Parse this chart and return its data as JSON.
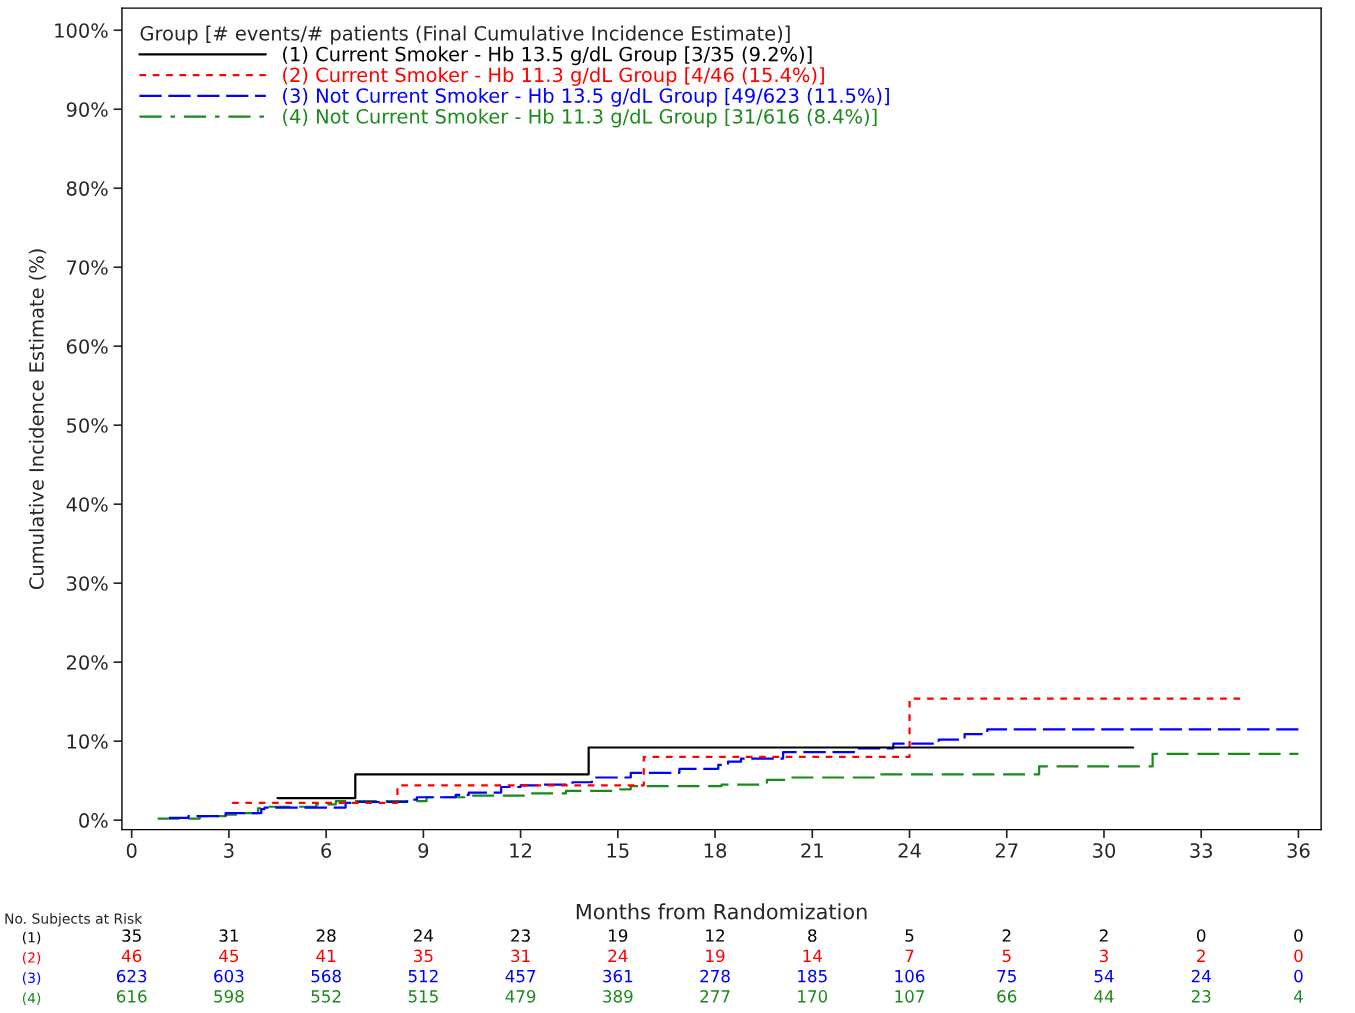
{
  "chart_data": [
    {
      "type": "step",
      "xlabel": "Months from Randomization",
      "ylabel": "Cumulative Incidence Estimate (%)",
      "legend_title": "Group [# events/# patients (Final Cumulative Incidence Estimate)]",
      "legend": "top left",
      "grid": false,
      "marker": "none",
      "xlim": [
        -0.3,
        36.7
      ],
      "xticks": [
        0,
        3,
        6,
        9,
        12,
        15,
        18,
        21,
        24,
        27,
        30,
        33,
        36
      ],
      "ylim": [
        -1.2,
        102.8
      ],
      "yticks": [
        {
          "value": 0,
          "label": "0%"
        },
        {
          "value": 10,
          "label": "10%"
        },
        {
          "value": 20,
          "label": "20%"
        },
        {
          "value": 30,
          "label": "30%"
        },
        {
          "value": 40,
          "label": "40%"
        },
        {
          "value": 50,
          "label": "50%"
        },
        {
          "value": 60,
          "label": "60%"
        },
        {
          "value": 70,
          "label": "70%"
        },
        {
          "value": 80,
          "label": "80%"
        },
        {
          "value": 90,
          "label": "90%"
        },
        {
          "value": 100,
          "label": "100%"
        }
      ],
      "series": [
        {
          "name": "(1) Current Smoker - Hb 13.5 g/dL Group [3/35 (9.2%)]",
          "color": "#000000",
          "line_style": "solid",
          "x": [
            4.5,
            6.9,
            14.1,
            30.9
          ],
          "values": [
            2.8,
            5.8,
            9.2,
            9.2
          ]
        },
        {
          "name": "(2) Current Smoker - Hb 11.3 g/dL Group [4/46 (15.4%)]",
          "color": "#ff0000",
          "line_style": "dotted",
          "x": [
            3.1,
            8.2,
            15.8,
            24.0,
            34.2
          ],
          "values": [
            2.2,
            4.4,
            8.0,
            15.4,
            15.4
          ]
        },
        {
          "name": "(3) Not Current Smoker - Hb 13.5 g/dL Group [49/623 (11.5%)]",
          "color": "#0000ff",
          "line_style": "dashed",
          "x": [
            1.15,
            1.75,
            2.9,
            3.6,
            4.0,
            4.1,
            6.6,
            6.9,
            8.5,
            8.8,
            10.0,
            10.4,
            11.4,
            12.0,
            12.6,
            13.6,
            14.2,
            15.4,
            16.9,
            18.1,
            18.4,
            18.8,
            20.1,
            22.4,
            23.5,
            24.9,
            25.7,
            26.4,
            36.0
          ],
          "values": [
            0.3,
            0.5,
            0.9,
            0.9,
            1.4,
            1.6,
            2.2,
            2.3,
            2.6,
            2.9,
            3.2,
            3.5,
            4.2,
            4.4,
            4.5,
            4.8,
            5.4,
            6.0,
            6.5,
            7.0,
            7.4,
            7.8,
            8.6,
            9.1,
            9.7,
            10.2,
            10.9,
            11.5,
            11.5
          ]
        },
        {
          "name": "(4) Not Current Smoker - Hb 11.3 g/dL Group [31/616 (8.4%)]",
          "color": "#1a8a1a",
          "line_style": "dashdot",
          "x": [
            0.8,
            2.1,
            2.9,
            3.3,
            3.9,
            4.1,
            5.7,
            6.3,
            9.1,
            10.3,
            12.1,
            13.4,
            14.9,
            15.4,
            18.2,
            19.6,
            20.3,
            23.0,
            28.0,
            31.5,
            36.0
          ],
          "values": [
            0.2,
            0.5,
            0.7,
            0.9,
            1.5,
            1.7,
            2.0,
            2.4,
            2.9,
            3.1,
            3.4,
            3.7,
            3.9,
            4.3,
            4.5,
            5.1,
            5.4,
            5.8,
            6.8,
            8.4,
            8.4
          ]
        }
      ]
    },
    {
      "type": "heatmap",
      "title": "No. Subjects at Risk",
      "data_labels": true,
      "categories": [
        null,
        null,
        null,
        null,
        null,
        null,
        null,
        null,
        null,
        null,
        null,
        null,
        null
      ],
      "y_categories": [
        "(1)",
        "(2)",
        "(3)",
        "(4)"
      ],
      "colors": [
        "#000000",
        "#ff0000",
        "#0000ff",
        "#1a8a1a"
      ],
      "cells": [
        [
          35,
          31,
          28,
          24,
          23,
          19,
          12,
          8,
          5,
          2,
          2,
          0,
          0
        ],
        [
          46,
          45,
          41,
          35,
          31,
          24,
          19,
          14,
          7,
          5,
          3,
          2,
          0
        ],
        [
          623,
          603,
          568,
          512,
          457,
          361,
          278,
          185,
          106,
          75,
          54,
          24,
          0
        ],
        [
          616,
          598,
          552,
          515,
          479,
          389,
          277,
          170,
          107,
          66,
          44,
          23,
          4
        ]
      ]
    }
  ]
}
